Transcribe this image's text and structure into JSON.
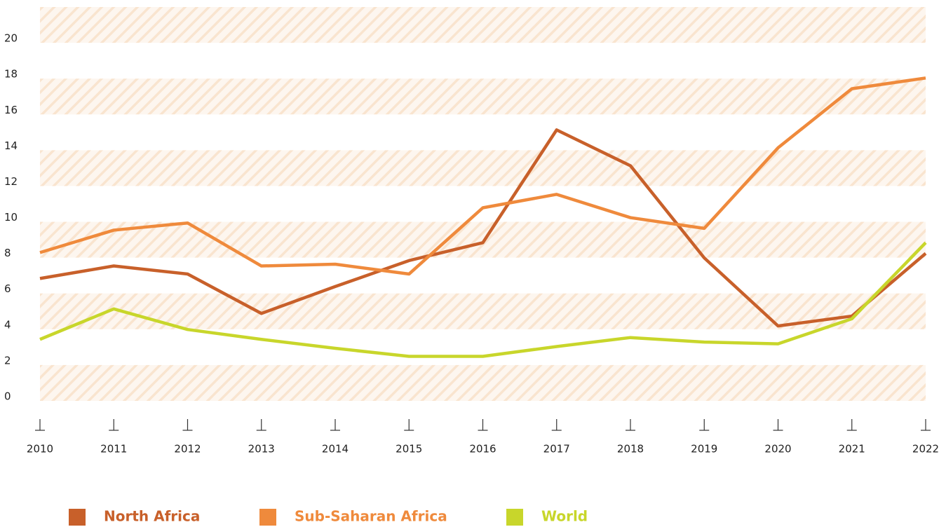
{
  "chart_data": {
    "type": "line",
    "x": [
      2010,
      2011,
      2012,
      2013,
      2014,
      2015,
      2016,
      2017,
      2018,
      2019,
      2020,
      2021,
      2022
    ],
    "xlim": [
      2010,
      2022
    ],
    "xticks": [
      2010,
      2011,
      2012,
      2013,
      2014,
      2015,
      2016,
      2017,
      2018,
      2019,
      2020,
      2021,
      2022
    ],
    "ylim": [
      0,
      22
    ],
    "yticks": [
      0,
      2,
      4,
      6,
      8,
      10,
      12,
      14,
      16,
      18,
      20
    ],
    "series": [
      {
        "name": "North Africa",
        "color": "#c8602a",
        "values": [
          6.6,
          7.3,
          6.85,
          4.65,
          6.15,
          7.6,
          8.6,
          14.9,
          12.9,
          7.75,
          3.95,
          4.5,
          8.0
        ]
      },
      {
        "name": "Sub-Saharan Africa",
        "color": "#ef8a3c",
        "values": [
          8.05,
          9.3,
          9.7,
          7.3,
          7.4,
          6.85,
          10.55,
          11.3,
          10.0,
          9.4,
          13.9,
          17.2,
          17.8
        ]
      },
      {
        "name": "World",
        "color": "#c8d62b",
        "values": [
          3.2,
          4.9,
          3.75,
          3.2,
          2.7,
          2.25,
          2.25,
          2.8,
          3.3,
          3.05,
          2.95,
          4.35,
          8.6
        ]
      }
    ]
  }
}
